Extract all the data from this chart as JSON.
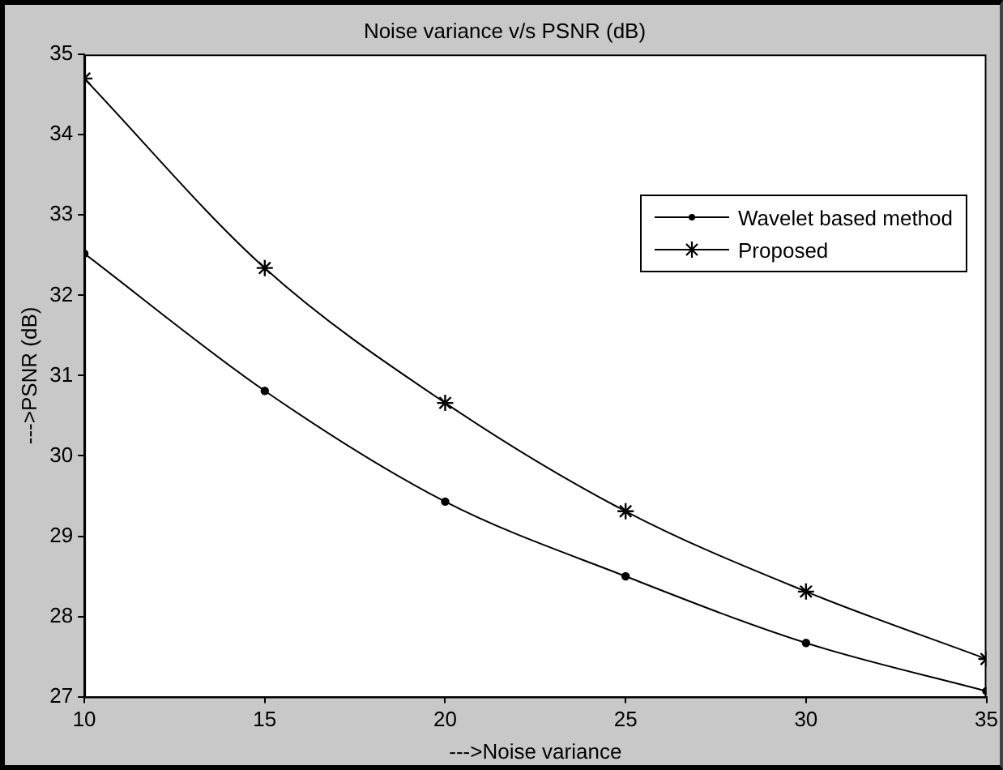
{
  "chart_data": {
    "type": "line",
    "title": "Noise variance v/s PSNR (dB)",
    "xlabel": "--->Noise variance",
    "ylabel": "--->PSNR (dB)",
    "x": [
      10,
      15,
      20,
      25,
      30,
      35
    ],
    "series": [
      {
        "name": "Wavelet based method",
        "color": "#000000",
        "marker": "circle",
        "values": [
          32.52,
          30.81,
          29.43,
          28.5,
          27.67,
          27.07
        ]
      },
      {
        "name": "Proposed",
        "color": "#000000",
        "marker": "cross",
        "values": [
          34.7,
          32.34,
          30.66,
          29.31,
          28.31,
          27.47
        ]
      }
    ],
    "xlim": [
      10,
      35
    ],
    "xticks": [
      10,
      15,
      20,
      25,
      30,
      35
    ],
    "ylim": [
      27,
      35
    ],
    "yticks": [
      27,
      28,
      29,
      30,
      31,
      32,
      33,
      34,
      35
    ],
    "grid": false,
    "legend": "top right",
    "line_style": "solid"
  }
}
